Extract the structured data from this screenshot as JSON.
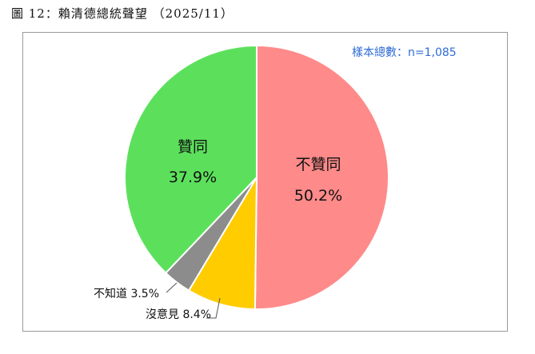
{
  "figure_title": "圖 12：賴清德總統聲望 （2025/11）",
  "sample_note": "樣本總數：n=1,085",
  "chart_data": {
    "type": "pie",
    "slices": [
      {
        "name": "不贊同",
        "value": 50.2,
        "label": "50.2%",
        "color": "#ff8a8a"
      },
      {
        "name": "沒意見",
        "value": 8.4,
        "label": "8.4%",
        "color": "#ffcc00"
      },
      {
        "name": "不知道",
        "value": 3.5,
        "label": "3.5%",
        "color": "#8c8c8c"
      },
      {
        "name": "贊同",
        "value": 37.9,
        "label": "37.9%",
        "color": "#5ce05c"
      }
    ],
    "start": "12 o'clock",
    "direction": "clockwise"
  }
}
